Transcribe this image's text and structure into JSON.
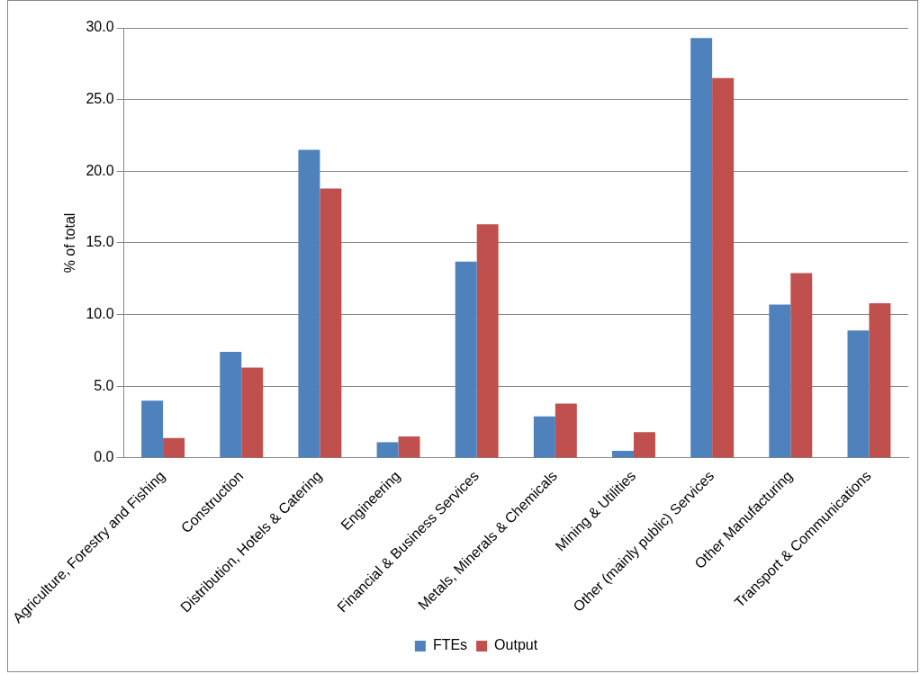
{
  "chart_data": {
    "type": "bar",
    "ylabel": "% of total",
    "categories": [
      "Agriculture, Forestry and Fishing",
      "Construction",
      "Distribution, Hotels & Catering",
      "Engineering",
      "Financial & Business Services",
      "Metals, Minerals & Chemicals",
      "Mining & Utilities",
      "Other (mainly public) Services",
      "Other Manufacturing",
      "Transport & Communications"
    ],
    "series": [
      {
        "name": "FTEs",
        "color": "#4f81bd",
        "values": [
          4.0,
          7.4,
          21.5,
          1.1,
          13.7,
          2.9,
          0.5,
          29.3,
          10.7,
          8.9
        ]
      },
      {
        "name": "Output",
        "color": "#c0504d",
        "values": [
          1.4,
          6.3,
          18.8,
          1.5,
          16.3,
          3.8,
          1.8,
          26.5,
          12.9,
          10.8
        ]
      }
    ],
    "ylim": [
      0,
      30
    ],
    "yticks": [
      {
        "value": 0,
        "label": "0.0"
      },
      {
        "value": 5,
        "label": "5.0"
      },
      {
        "value": 10,
        "label": "10.0"
      },
      {
        "value": 15,
        "label": "15.0"
      },
      {
        "value": 20,
        "label": "20.0"
      },
      {
        "value": 25,
        "label": "25.0"
      },
      {
        "value": 30,
        "label": "30.0"
      }
    ],
    "grid": "y",
    "legend": "bottom"
  }
}
